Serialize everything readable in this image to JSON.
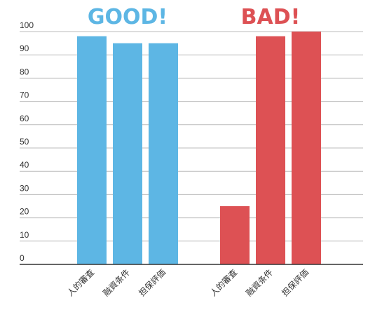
{
  "chart_data": {
    "type": "bar",
    "title": "",
    "xlabel": "",
    "ylabel": "",
    "ylim": [
      0,
      100
    ],
    "yticks": [
      0,
      10,
      20,
      30,
      40,
      50,
      60,
      70,
      80,
      90,
      100
    ],
    "grid": true,
    "groups": [
      {
        "heading": "GOOD!",
        "color": "#5DB6E4",
        "categories": [
          "人的審査",
          "融資条件",
          "担保評価"
        ],
        "values": [
          98,
          95,
          95
        ]
      },
      {
        "heading": "BAD!",
        "color": "#DD5154",
        "categories": [
          "人的審査",
          "融資条件",
          "担保評価"
        ],
        "values": [
          25,
          98,
          100
        ]
      }
    ]
  },
  "colors": {
    "grid": "#bbbbbb",
    "axis": "#333333",
    "text": "#333333"
  }
}
